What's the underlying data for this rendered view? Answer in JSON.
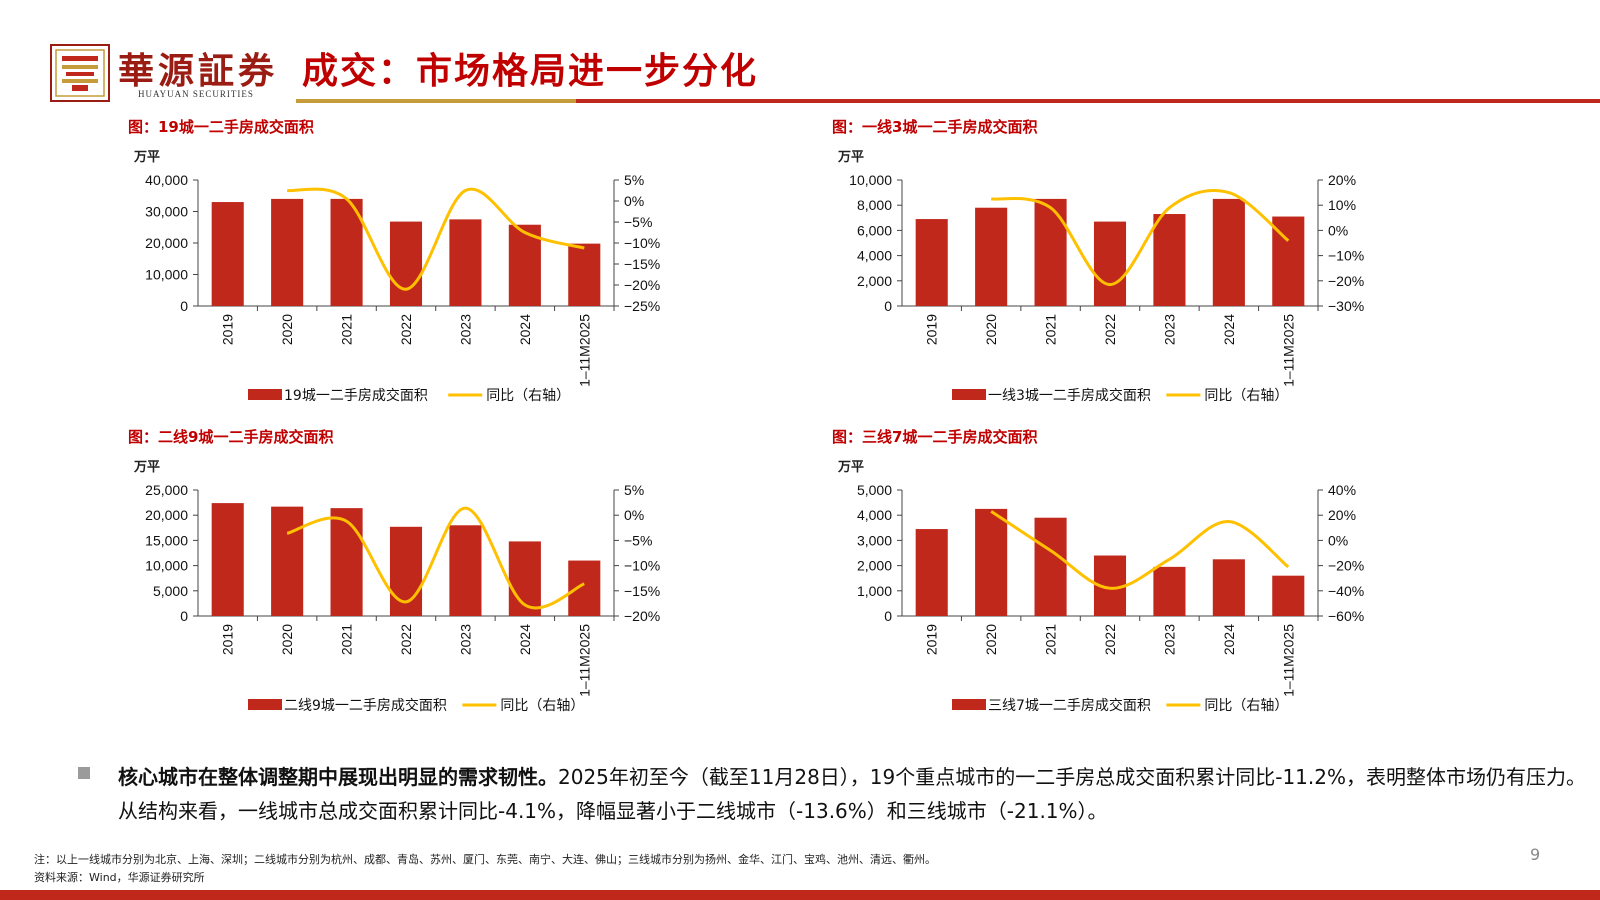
{
  "header": {
    "brand_cn": "華源証券",
    "brand_en": "HUAYUAN SECURITIES",
    "title": "成交：市场格局进一步分化"
  },
  "colors": {
    "bar": "#c0281c",
    "line": "#ffc000",
    "title": "#c00000",
    "accent": "#c69c3a"
  },
  "chart_data": [
    {
      "type": "bar",
      "title": "图：19城一二手房成交面积",
      "unit": "万平",
      "categories": [
        "2019",
        "2020",
        "2021",
        "2022",
        "2023",
        "2024",
        "1–11M2025"
      ],
      "series": [
        {
          "name": "19城一二手房成交面积",
          "type": "bar",
          "axis": "left",
          "values": [
            33000,
            34000,
            34000,
            26800,
            27500,
            25800,
            19800
          ]
        },
        {
          "name": "同比（右轴）",
          "type": "line",
          "axis": "right",
          "values": [
            null,
            2.5,
            0.5,
            -21,
            2.5,
            -7.5,
            -11.2
          ]
        }
      ],
      "ylim": [
        0,
        40000
      ],
      "yticks": [
        0,
        10000,
        20000,
        30000,
        40000
      ],
      "ytick_labels": [
        "0",
        "10,000",
        "20,000",
        "30,000",
        "40,000"
      ],
      "y2lim": [
        -25,
        5
      ],
      "y2ticks": [
        -25,
        -20,
        -15,
        -10,
        -5,
        0,
        5
      ],
      "y2tick_labels": [
        "−25%",
        "−20%",
        "−15%",
        "−10%",
        "−5%",
        "0%",
        "5%"
      ],
      "legend": [
        "19城一二手房成交面积",
        "同比（右轴）"
      ]
    },
    {
      "type": "bar",
      "title": "图：一线3城一二手房成交面积",
      "unit": "万平",
      "categories": [
        "2019",
        "2020",
        "2021",
        "2022",
        "2023",
        "2024",
        "1–11M2025"
      ],
      "series": [
        {
          "name": "一线3城一二手房成交面积",
          "type": "bar",
          "axis": "left",
          "values": [
            6900,
            7800,
            8500,
            6700,
            7300,
            8500,
            7100
          ]
        },
        {
          "name": "同比（右轴）",
          "type": "line",
          "axis": "right",
          "values": [
            null,
            12.5,
            9,
            -21.5,
            9,
            15,
            -4.1
          ]
        }
      ],
      "ylim": [
        0,
        10000
      ],
      "yticks": [
        0,
        2000,
        4000,
        6000,
        8000,
        10000
      ],
      "ytick_labels": [
        "0",
        "2,000",
        "4,000",
        "6,000",
        "8,000",
        "10,000"
      ],
      "y2lim": [
        -30,
        20
      ],
      "y2ticks": [
        -30,
        -20,
        -10,
        0,
        10,
        20
      ],
      "y2tick_labels": [
        "−30%",
        "−20%",
        "−10%",
        "0%",
        "10%",
        "20%"
      ],
      "legend": [
        "一线3城一二手房成交面积",
        "同比（右轴）"
      ]
    },
    {
      "type": "bar",
      "title": "图：二线9城一二手房成交面积",
      "unit": "万平",
      "categories": [
        "2019",
        "2020",
        "2021",
        "2022",
        "2023",
        "2024",
        "1–11M2025"
      ],
      "series": [
        {
          "name": "二线9城一二手房成交面积",
          "type": "bar",
          "axis": "left",
          "values": [
            22400,
            21700,
            21400,
            17700,
            18000,
            14800,
            11000
          ]
        },
        {
          "name": "同比（右轴）",
          "type": "line",
          "axis": "right",
          "values": [
            null,
            -3.6,
            -1.2,
            -17.2,
            1.4,
            -17.8,
            -13.6
          ]
        }
      ],
      "ylim": [
        0,
        25000
      ],
      "yticks": [
        0,
        5000,
        10000,
        15000,
        20000,
        25000
      ],
      "ytick_labels": [
        "0",
        "5,000",
        "10,000",
        "15,000",
        "20,000",
        "25,000"
      ],
      "y2lim": [
        -20,
        5
      ],
      "y2ticks": [
        -20,
        -15,
        -10,
        -5,
        0,
        5
      ],
      "y2tick_labels": [
        "−20%",
        "−15%",
        "−10%",
        "−5%",
        "0%",
        "5%"
      ],
      "legend": [
        "二线9城一二手房成交面积",
        "同比（右轴）"
      ]
    },
    {
      "type": "bar",
      "title": "图：三线7城一二手房成交面积",
      "unit": "万平",
      "categories": [
        "2019",
        "2020",
        "2021",
        "2022",
        "2023",
        "2024",
        "1–11M2025"
      ],
      "series": [
        {
          "name": "三线7城一二手房成交面积",
          "type": "bar",
          "axis": "left",
          "values": [
            3450,
            4250,
            3900,
            2400,
            1950,
            2250,
            1600
          ]
        },
        {
          "name": "同比（右轴）",
          "type": "line",
          "axis": "right",
          "values": [
            null,
            23,
            -8,
            -38,
            -15,
            15,
            -21.1
          ]
        }
      ],
      "ylim": [
        0,
        5000
      ],
      "yticks": [
        0,
        1000,
        2000,
        3000,
        4000,
        5000
      ],
      "ytick_labels": [
        "0",
        "1,000",
        "2,000",
        "3,000",
        "4,000",
        "5,000"
      ],
      "y2lim": [
        -60,
        40
      ],
      "y2ticks": [
        -60,
        -40,
        -20,
        0,
        20,
        40
      ],
      "y2tick_labels": [
        "−60%",
        "−40%",
        "−20%",
        "0%",
        "20%",
        "40%"
      ],
      "legend": [
        "三线7城一二手房成交面积",
        "同比（右轴）"
      ]
    }
  ],
  "body": {
    "bold_lead": "核心城市在整体调整期中展现出明显的需求韧性。",
    "text": "2025年初至今（截至11月28日），19个重点城市的一二手房总成交面积累计同比-11.2%，表明整体市场仍有压力。从结构来看，一线城市总成交面积累计同比-4.1%，降幅显著小于二线城市（-13.6%）和三线城市（-21.1%）。"
  },
  "footer": {
    "note": "注：以上一线城市分别为北京、上海、深圳；二线城市分别为杭州、成都、青岛、苏州、厦门、东莞、南宁、大连、佛山；三线城市分别为扬州、金华、江门、宝鸡、池州、清远、衢州。",
    "source": "资料来源：Wind，华源证券研究所",
    "page": "9"
  }
}
